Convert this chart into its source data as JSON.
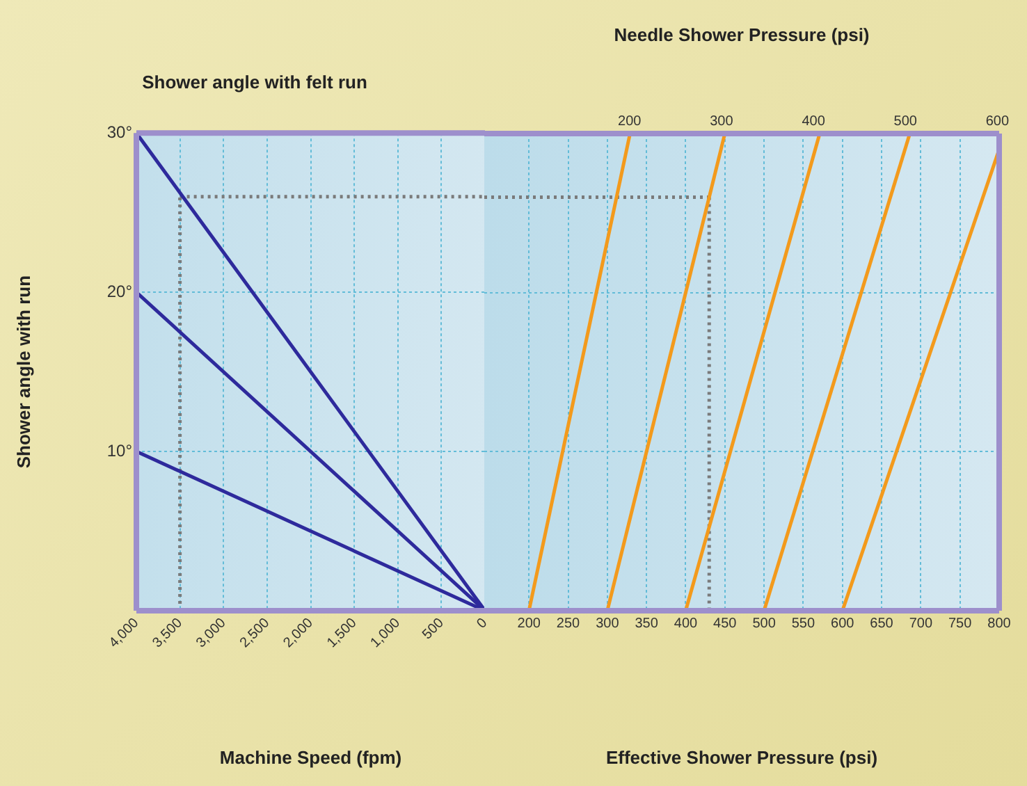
{
  "chart_data": [
    {
      "type": "line",
      "title": "Shower angle with felt run",
      "xlabel": "Machine Speed (fpm)",
      "ylabel": "Shower angle with run",
      "xlim": [
        4000,
        0
      ],
      "xticks": [
        {
          "value": 4000,
          "label": "4,000"
        },
        {
          "value": 3500,
          "label": "3,500"
        },
        {
          "value": 3000,
          "label": "3,000"
        },
        {
          "value": 2500,
          "label": "2,500"
        },
        {
          "value": 2000,
          "label": "2,000"
        },
        {
          "value": 1500,
          "label": "1,500"
        },
        {
          "value": 1000,
          "label": "1,000"
        },
        500,
        0
      ],
      "ylim": [
        0,
        30
      ],
      "yticks": [
        {
          "value": 10,
          "label": "10°"
        },
        {
          "value": 20,
          "label": "20°"
        },
        {
          "value": 30,
          "label": "30°"
        }
      ],
      "grid": true,
      "marker": "none",
      "line_style": "solid",
      "series": [
        {
          "color": "#2e2a9c",
          "x": [
            4000,
            0
          ],
          "values": [
            30,
            0
          ]
        },
        {
          "color": "#2e2a9c",
          "x": [
            4000,
            0
          ],
          "values": [
            20,
            0
          ]
        },
        {
          "color": "#2e2a9c",
          "x": [
            4000,
            0
          ],
          "values": [
            10,
            0
          ]
        },
        {
          "color": "#7a7a7a",
          "x": [
            3500,
            3500
          ],
          "values": [
            0,
            26
          ],
          "line_style": "dotted"
        },
        {
          "color": "#7a7a7a",
          "x": [
            3500,
            0
          ],
          "values": [
            26,
            26
          ],
          "line_style": "dotted"
        }
      ]
    },
    {
      "type": "line",
      "xlabel": "Effective Shower Pressure (psi)",
      "x2label": "Needle Shower Pressure (psi)",
      "xlim": [
        143,
        800
      ],
      "xticks": [
        200,
        250,
        300,
        350,
        400,
        450,
        500,
        550,
        600,
        650,
        700,
        750,
        800
      ],
      "x2lim": [
        42,
        602
      ],
      "x2ticks": [
        200,
        300,
        400,
        500,
        600
      ],
      "ylim": [
        0,
        30
      ],
      "yticks": [
        10,
        20,
        30
      ],
      "tick_labels": "x",
      "grid": true,
      "marker": "none",
      "line_style": "solid",
      "series": [
        {
          "color": "#f39a1c",
          "x": [
            200,
            329
          ],
          "values": [
            0,
            30
          ]
        },
        {
          "color": "#f39a1c",
          "x": [
            300,
            450
          ],
          "values": [
            0,
            30
          ]
        },
        {
          "color": "#f39a1c",
          "x": [
            400,
            571
          ],
          "values": [
            0,
            30
          ]
        },
        {
          "color": "#f39a1c",
          "x": [
            500,
            686
          ],
          "values": [
            0,
            30
          ]
        },
        {
          "color": "#f39a1c",
          "x": [
            600,
            800
          ],
          "values": [
            0,
            29
          ]
        },
        {
          "color": "#7a7a7a",
          "x": [
            143,
            430
          ],
          "values": [
            26,
            26
          ],
          "line_style": "dotted"
        },
        {
          "color": "#7a7a7a",
          "x": [
            430,
            430
          ],
          "values": [
            26,
            0
          ],
          "line_style": "dotted"
        }
      ]
    }
  ]
}
